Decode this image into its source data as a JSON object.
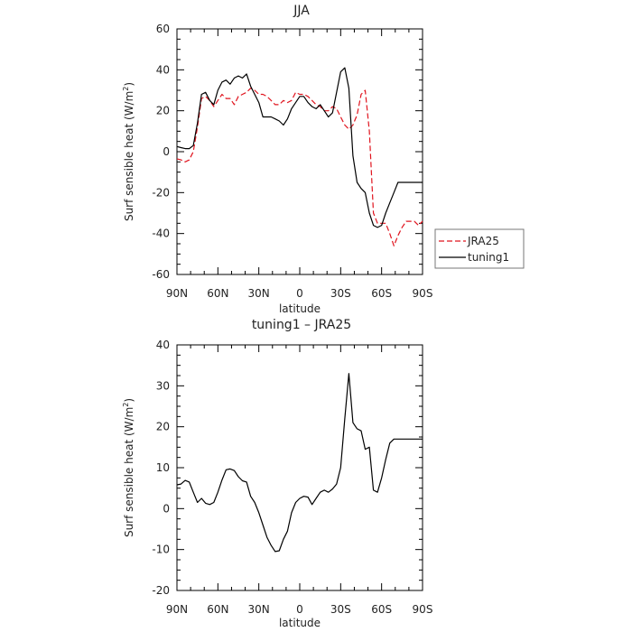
{
  "chart_data": [
    {
      "type": "line",
      "title": "JJA",
      "xlabel": "latitude",
      "ylabel": "Surf sensible heat (W/m²)",
      "ylabel_main": "Surf sensible heat (W/m",
      "ylabel_sup": "2",
      "ylabel_close": ")",
      "xlim": [
        90,
        -90
      ],
      "ylim": [
        -60,
        60
      ],
      "xticks": [
        90,
        60,
        30,
        0,
        -30,
        -60,
        -90
      ],
      "xtick_labels": [
        "90N",
        "60N",
        "30N",
        "0",
        "30S",
        "60S",
        "90S"
      ],
      "yticks": [
        -60,
        -40,
        -20,
        0,
        20,
        40,
        60
      ],
      "ytick_labels": [
        "-60",
        "-40",
        "-20",
        "0",
        "20",
        "40",
        "60"
      ],
      "legend_placement": "right",
      "series": [
        {
          "name": "JRA25",
          "color": "#e0141e",
          "dash": true,
          "x": [
            90,
            87,
            84,
            81,
            78,
            75,
            72,
            69,
            66,
            63,
            60,
            57,
            54,
            51,
            48,
            45,
            42,
            39,
            36,
            33,
            30,
            27,
            24,
            21,
            18,
            15,
            12,
            9,
            6,
            3,
            0,
            -3,
            -6,
            -9,
            -12,
            -15,
            -18,
            -21,
            -24,
            -27,
            -30,
            -33,
            -36,
            -39,
            -42,
            -45,
            -48,
            -51,
            -54,
            -57,
            -60,
            -63,
            -66,
            -69,
            -72,
            -75,
            -78,
            -81,
            -84,
            -87,
            -90
          ],
          "y": [
            -3.5,
            -4,
            -5,
            -4,
            0,
            12,
            26,
            27,
            25,
            22,
            25,
            28,
            26,
            26,
            23,
            27,
            28,
            29,
            31,
            30,
            28,
            28,
            27,
            25,
            23,
            23,
            25,
            24,
            25,
            29,
            28,
            28,
            27,
            25,
            23,
            22,
            20,
            20,
            22,
            21,
            17,
            13,
            11,
            13,
            18,
            28,
            30,
            10,
            -30,
            -35,
            -35,
            -35,
            -40,
            -46,
            -41,
            -37,
            -34,
            -34,
            -34,
            -36,
            -34
          ]
        },
        {
          "name": "tuning1",
          "color": "#000000",
          "dash": false,
          "x": [
            90,
            87,
            84,
            81,
            78,
            75,
            72,
            69,
            66,
            63,
            60,
            57,
            54,
            51,
            48,
            45,
            42,
            39,
            36,
            33,
            30,
            27,
            24,
            21,
            18,
            15,
            12,
            9,
            6,
            3,
            0,
            -3,
            -6,
            -9,
            -12,
            -15,
            -18,
            -21,
            -24,
            -27,
            -30,
            -33,
            -36,
            -39,
            -42,
            -45,
            -48,
            -51,
            -54,
            -57,
            -60,
            -63,
            -66,
            -69,
            -72,
            -75,
            -78,
            -81,
            -84,
            -87,
            -90
          ],
          "y": [
            2.5,
            2,
            1.5,
            1.5,
            3,
            14,
            28,
            29,
            25,
            23,
            30,
            34,
            35,
            33,
            36,
            37,
            36,
            38,
            32,
            28,
            24,
            17,
            17,
            17,
            16,
            15,
            13,
            16,
            21,
            24,
            27,
            27,
            24,
            22,
            21,
            23,
            20,
            17,
            19,
            29,
            39,
            41,
            31,
            -2,
            -15,
            -18,
            -20,
            -30,
            -36,
            -37,
            -36,
            -30,
            -25,
            -20,
            -15,
            -15,
            -15,
            -15,
            -15,
            -15,
            -15
          ]
        }
      ]
    },
    {
      "type": "line",
      "title": "tuning1 – JRA25",
      "xlabel": "latitude",
      "ylabel": "Surf sensible heat (W/m²)",
      "ylabel_main": "Surf sensible heat (W/m",
      "ylabel_sup": "2",
      "ylabel_close": ")",
      "xlim": [
        90,
        -90
      ],
      "ylim": [
        -20,
        40
      ],
      "xticks": [
        90,
        60,
        30,
        0,
        -30,
        -60,
        -90
      ],
      "xtick_labels": [
        "90N",
        "60N",
        "30N",
        "0",
        "30S",
        "60S",
        "90S"
      ],
      "yticks": [
        -20,
        -10,
        0,
        10,
        20,
        30,
        40
      ],
      "ytick_labels": [
        "-20",
        "-10",
        "0",
        "10",
        "20",
        "30",
        "40"
      ],
      "series": [
        {
          "color": "#000000",
          "dash": false,
          "x": [
            90,
            87,
            84,
            81,
            78,
            75,
            72,
            69,
            66,
            63,
            60,
            57,
            54,
            51,
            48,
            45,
            42,
            39,
            36,
            33,
            30,
            27,
            24,
            21,
            18,
            15,
            12,
            9,
            6,
            3,
            0,
            -3,
            -6,
            -9,
            -12,
            -15,
            -18,
            -21,
            -24,
            -27,
            -30,
            -33,
            -36,
            -39,
            -42,
            -45,
            -48,
            -51,
            -54,
            -57,
            -60,
            -63,
            -66,
            -69,
            -72,
            -75,
            -78,
            -81,
            -84,
            -87,
            -90
          ],
          "y": [
            5.8,
            6.0,
            6.9,
            6.5,
            4.0,
            1.5,
            2.5,
            1.3,
            1.0,
            1.5,
            4.0,
            7.0,
            9.5,
            9.7,
            9.3,
            7.8,
            6.8,
            6.5,
            3.0,
            1.5,
            -1.0,
            -4.0,
            -7.0,
            -9.0,
            -10.5,
            -10.3,
            -7.5,
            -5.5,
            -1.0,
            1.5,
            2.5,
            3.0,
            2.8,
            1.0,
            2.5,
            4.0,
            4.5,
            4.0,
            4.8,
            6.0,
            10.0,
            22.0,
            33.0,
            21.0,
            19.5,
            19.0,
            14.5,
            15.0,
            4.5,
            4.0,
            7.5,
            12.0,
            16.0,
            17.0,
            17.0,
            17.0,
            17.0,
            17.0,
            17.0,
            17.0,
            17.0
          ]
        }
      ]
    }
  ]
}
